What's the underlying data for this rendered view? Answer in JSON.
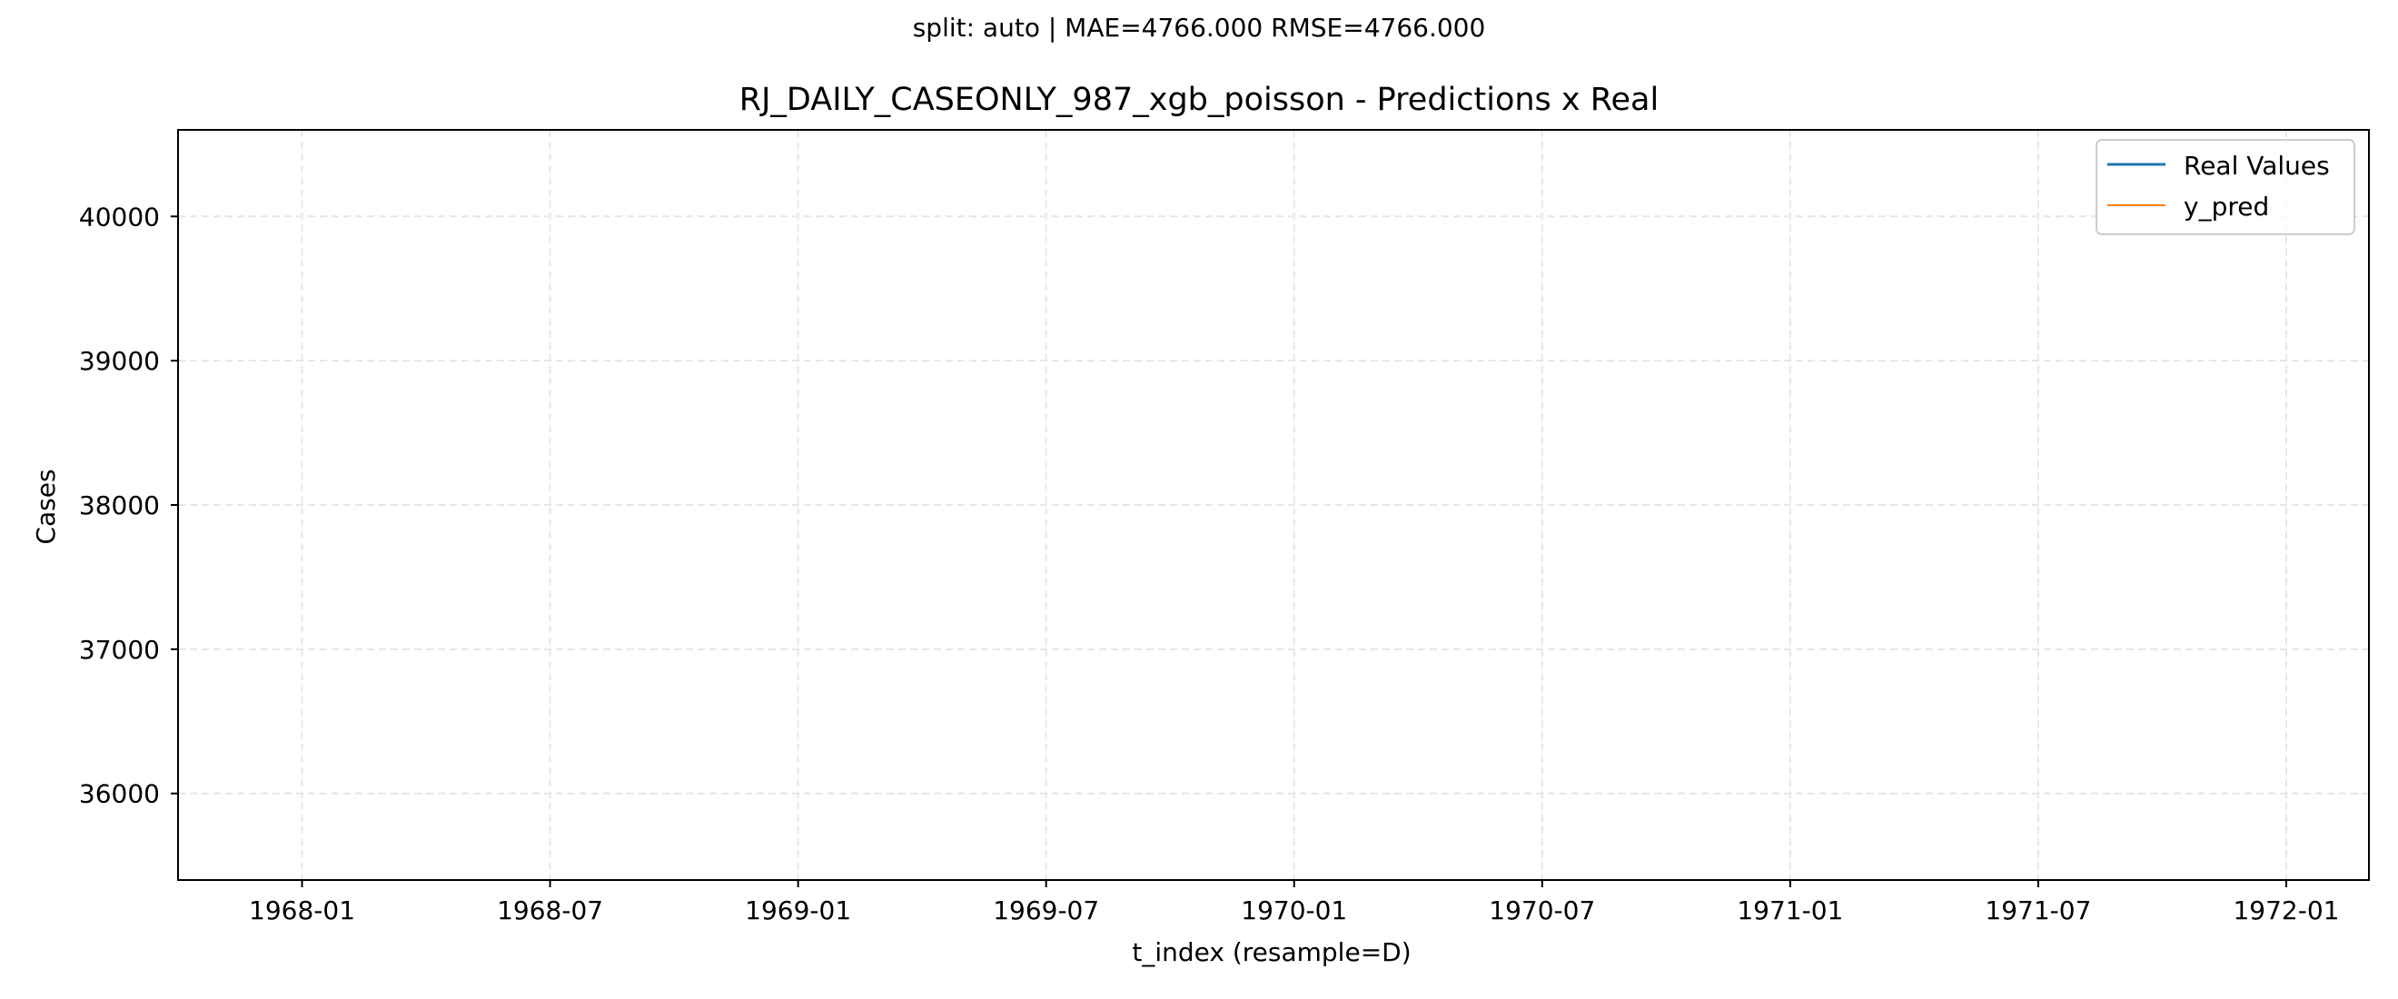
{
  "chart_data": {
    "type": "line",
    "suptitle": "split: auto | MAE=4766.000  RMSE=4766.000",
    "title": "RJ_DAILY_CASEONLY_987_xgb_poisson - Predictions x Real",
    "xlabel": "t_index (resample=D)",
    "ylabel": "Cases",
    "x_ticks": [
      "1968-01",
      "1968-07",
      "1969-01",
      "1969-07",
      "1970-01",
      "1970-07",
      "1971-01",
      "1971-07",
      "1972-01"
    ],
    "y_ticks": [
      36000,
      37000,
      38000,
      39000,
      40000
    ],
    "xlim": [
      "1967-10",
      "1972-03"
    ],
    "ylim": [
      35400,
      40600
    ],
    "grid": true,
    "legend_position": "top-right",
    "series": [
      {
        "name": "Real Values",
        "color": "#1f77b4",
        "points": []
      },
      {
        "name": "y_pred",
        "color": "#ff7f0e",
        "points": []
      }
    ]
  }
}
